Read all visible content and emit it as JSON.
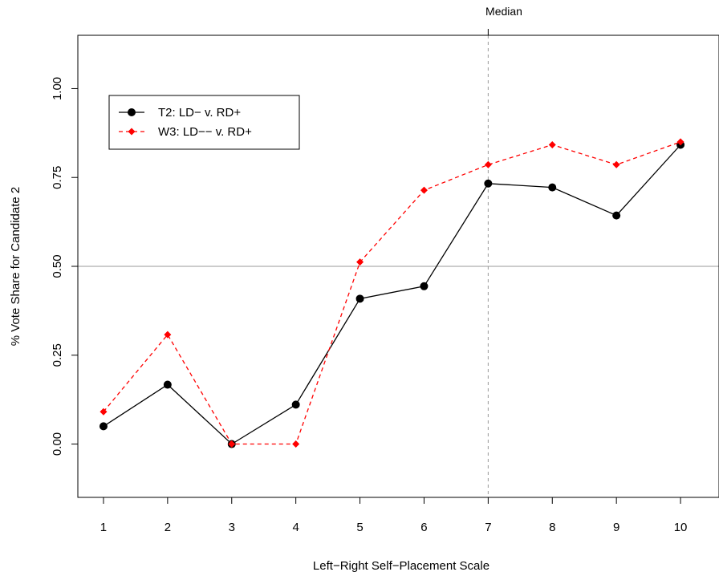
{
  "chart_data": {
    "type": "line",
    "title": "",
    "xlabel": "Left−Right Self−Placement Scale",
    "ylabel": "% Vote Share for Candidate 2",
    "x_ticks": [
      "1",
      "2",
      "3",
      "4",
      "5",
      "6",
      "7",
      "8",
      "9",
      "10"
    ],
    "y_ticks": [
      "0.00",
      "0.25",
      "0.50",
      "0.75",
      "1.00"
    ],
    "xlim": [
      0.6,
      10.6
    ],
    "ylim": [
      -0.15,
      1.15
    ],
    "grid": false,
    "reference_lines": {
      "horizontal": {
        "y": 0.5
      },
      "vertical": {
        "x": 7,
        "label": "Median"
      }
    },
    "legend": {
      "position": "top-left"
    },
    "series": [
      {
        "name": "T2: LD− v. RD+",
        "color": "#000000",
        "line_style": "solid",
        "marker": "circle",
        "x": [
          1,
          2,
          3,
          4,
          5,
          6,
          7,
          8,
          9,
          10
        ],
        "values": [
          0.05,
          0.167,
          0.0,
          0.111,
          0.409,
          0.444,
          0.733,
          0.722,
          0.643,
          0.842
        ]
      },
      {
        "name": "W3: LD−− v. RD+",
        "color": "#ff0000",
        "line_style": "dashed",
        "marker": "diamond",
        "x": [
          1,
          2,
          3,
          4,
          5,
          6,
          7,
          8,
          9,
          10
        ],
        "values": [
          0.091,
          0.308,
          0.0,
          0.0,
          0.512,
          0.714,
          0.786,
          0.842,
          0.786,
          0.85
        ]
      }
    ]
  }
}
